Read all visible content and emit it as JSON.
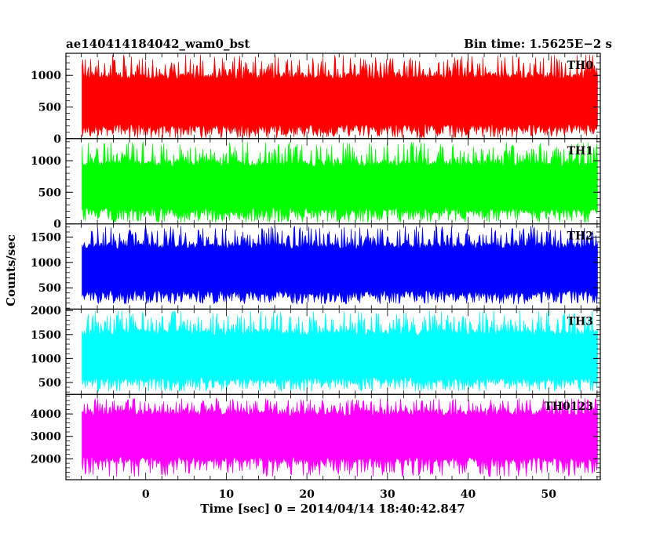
{
  "header": {
    "title": "ae140414184042_wam0_bst",
    "bin_time": "Bin time: 1.5625E−2 s"
  },
  "chart_data": [
    {
      "type": "area",
      "name": "TH0",
      "label": "TH0",
      "color": "#ff0000",
      "x_range": [
        -7.9,
        56.1
      ],
      "ylim": [
        0,
        1350
      ],
      "yticks": [
        0,
        500,
        1000
      ],
      "y_typical": [
        120,
        1050
      ],
      "y_extreme": [
        5,
        1330
      ]
    },
    {
      "type": "area",
      "name": "TH1",
      "label": "TH1",
      "color": "#00ff00",
      "x_range": [
        -7.9,
        56.1
      ],
      "ylim": [
        0,
        1350
      ],
      "yticks": [
        0,
        500,
        1000
      ],
      "y_typical": [
        160,
        1010
      ],
      "y_extreme": [
        20,
        1300
      ]
    },
    {
      "type": "area",
      "name": "TH2",
      "label": "TH2",
      "color": "#0000ff",
      "x_range": [
        -7.9,
        56.1
      ],
      "ylim": [
        80,
        1760
      ],
      "yticks": [
        500,
        1000,
        1500
      ],
      "y_typical": [
        330,
        1390
      ],
      "y_extreme": [
        180,
        1720
      ]
    },
    {
      "type": "area",
      "name": "TH3",
      "label": "TH3",
      "color": "#00ffff",
      "x_range": [
        -7.9,
        56.1
      ],
      "ylim": [
        250,
        2030
      ],
      "yticks": [
        500,
        1000,
        1500,
        2000
      ],
      "y_typical": [
        480,
        1620
      ],
      "y_extreme": [
        310,
        2000
      ]
    },
    {
      "type": "area",
      "name": "TH0123",
      "label": "TH0123",
      "color": "#ff00ff",
      "x_range": [
        -7.9,
        56.1
      ],
      "ylim": [
        1070,
        4870
      ],
      "yticks": [
        2000,
        3000,
        4000
      ],
      "y_typical": [
        1800,
        4200
      ],
      "y_extreme": [
        1200,
        4700
      ]
    }
  ],
  "axes": {
    "xlim": [
      -9.9,
      56.4
    ],
    "xticks": [
      0,
      10,
      20,
      30,
      40,
      50
    ],
    "xlabel": "Time [sec] 0 = 2014/04/14 18:40:42.847",
    "ylabel": "Counts/sec"
  }
}
